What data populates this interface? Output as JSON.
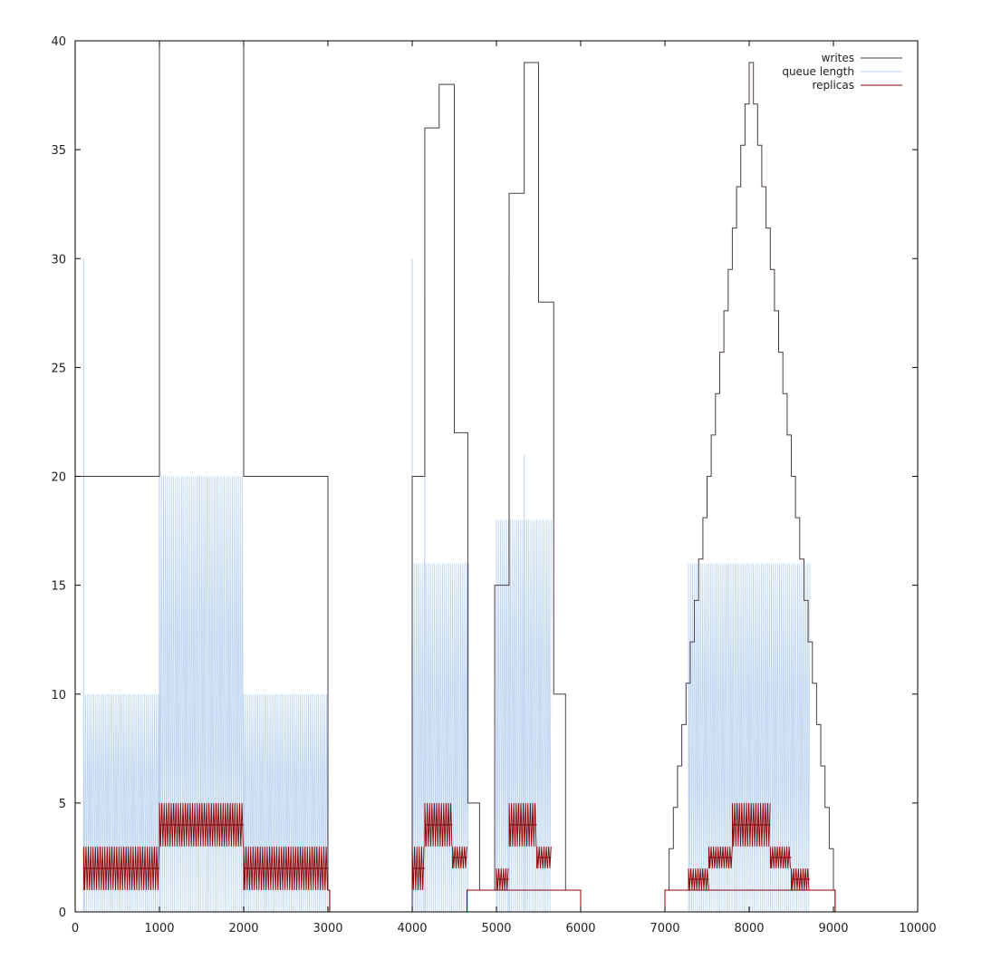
{
  "chart_data": {
    "type": "line",
    "title": "",
    "xlabel": "",
    "ylabel": "",
    "xlim": [
      0,
      10000
    ],
    "ylim": [
      0,
      40
    ],
    "xticks": [
      0,
      1000,
      2000,
      3000,
      4000,
      5000,
      6000,
      7000,
      8000,
      9000,
      10000
    ],
    "yticks": [
      0,
      5,
      10,
      15,
      20,
      25,
      30,
      35,
      40
    ],
    "grid": false,
    "legend_position": "top-right",
    "colors": {
      "writes": "#4a3a4a",
      "queue": "#b8d2f0",
      "replicas": "#8b0000"
    },
    "series": [
      {
        "name": "writes",
        "style": "step",
        "points": [
          [
            0,
            20
          ],
          [
            1000,
            40
          ],
          [
            2000,
            20
          ],
          [
            3000,
            1
          ],
          [
            3020,
            0
          ],
          [
            4000,
            20
          ],
          [
            4150,
            36
          ],
          [
            4320,
            38
          ],
          [
            4500,
            22
          ],
          [
            4660,
            5
          ],
          [
            4800,
            1
          ],
          [
            4980,
            15
          ],
          [
            5150,
            33
          ],
          [
            5330,
            39
          ],
          [
            5500,
            28
          ],
          [
            5680,
            10
          ],
          [
            5820,
            1
          ],
          [
            6000,
            0
          ],
          [
            7000,
            1
          ],
          [
            9000,
            1
          ],
          [
            9020,
            0
          ]
        ]
      },
      {
        "name": "queue length",
        "style": "oscillating-segments",
        "segments": [
          {
            "x": [
              100,
              1000
            ],
            "min": 0,
            "max": 10
          },
          {
            "x": [
              1000,
              2000
            ],
            "min": 0,
            "max": 20
          },
          {
            "x": [
              2000,
              3000
            ],
            "min": 0,
            "max": 10
          },
          {
            "x": [
              4000,
              4680
            ],
            "min": 0,
            "max": 16
          },
          {
            "x": [
              5000,
              5650
            ],
            "min": 0,
            "max": 18
          },
          {
            "x": [
              7280,
              8720
            ],
            "min": 0,
            "max": 16
          }
        ],
        "spikes": [
          [
            100,
            30
          ],
          [
            1000,
            40
          ],
          [
            4000,
            30
          ],
          [
            4150,
            28
          ],
          [
            5150,
            29
          ],
          [
            5330,
            21
          ]
        ]
      },
      {
        "name": "replicas",
        "style": "oscillating-segments",
        "segments": [
          {
            "x": [
              100,
              1000
            ],
            "min": 1,
            "max": 3,
            "center": 2
          },
          {
            "x": [
              1000,
              2000
            ],
            "min": 3,
            "max": 5,
            "center": 4
          },
          {
            "x": [
              2000,
              3000
            ],
            "min": 1,
            "max": 3,
            "center": 2
          },
          {
            "x": [
              4000,
              4150
            ],
            "min": 1,
            "max": 3,
            "center": 2
          },
          {
            "x": [
              4150,
              4480
            ],
            "min": 3,
            "max": 5,
            "center": 4
          },
          {
            "x": [
              4480,
              4650
            ],
            "min": 2,
            "max": 3,
            "center": 2.5
          },
          {
            "x": [
              5000,
              5150
            ],
            "min": 1,
            "max": 2,
            "center": 1.5
          },
          {
            "x": [
              5150,
              5480
            ],
            "min": 3,
            "max": 5,
            "center": 4
          },
          {
            "x": [
              5480,
              5650
            ],
            "min": 2,
            "max": 3,
            "center": 2.5
          },
          {
            "x": [
              7280,
              7520
            ],
            "min": 1,
            "max": 2,
            "center": 1.5
          },
          {
            "x": [
              7520,
              7800
            ],
            "min": 2,
            "max": 3,
            "center": 2.5
          },
          {
            "x": [
              7800,
              8250
            ],
            "min": 3,
            "max": 5,
            "center": 4
          },
          {
            "x": [
              8250,
              8500
            ],
            "min": 2,
            "max": 3,
            "center": 2.5
          },
          {
            "x": [
              8500,
              8720
            ],
            "min": 1,
            "max": 2,
            "center": 1.5
          }
        ],
        "baseline": [
          [
            3000,
            1
          ],
          [
            3020,
            0
          ],
          [
            4650,
            1
          ],
          [
            5000,
            1
          ],
          [
            5650,
            1
          ],
          [
            6000,
            0
          ],
          [
            7000,
            1
          ],
          [
            7280,
            1
          ],
          [
            8720,
            1
          ],
          [
            9000,
            1
          ],
          [
            9020,
            0
          ]
        ]
      }
    ],
    "pyramid": {
      "x": [
        7000,
        9000
      ],
      "peak_x": 8000,
      "peak_y": 39,
      "steps": 20
    }
  }
}
